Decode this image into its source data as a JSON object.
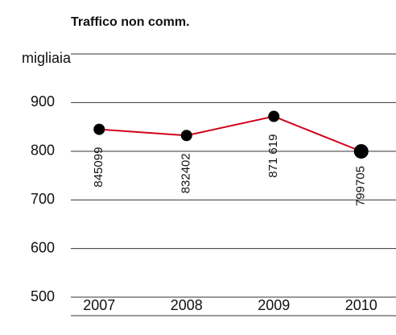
{
  "chart_data": {
    "type": "line",
    "title": "Traffico non comm.",
    "y_label": "migliaia",
    "categories": [
      "2007",
      "2008",
      "2009",
      "2010"
    ],
    "values": [
      845.099,
      832.402,
      871.619,
      799.705
    ],
    "value_labels": [
      "845099",
      "832402",
      "871 619",
      "799705"
    ],
    "color": "#d0021b",
    "marker_color": "#000000",
    "ylim": [
      462,
      1000
    ],
    "yticks": [
      500,
      600,
      700,
      800,
      900
    ],
    "grid": true
  }
}
